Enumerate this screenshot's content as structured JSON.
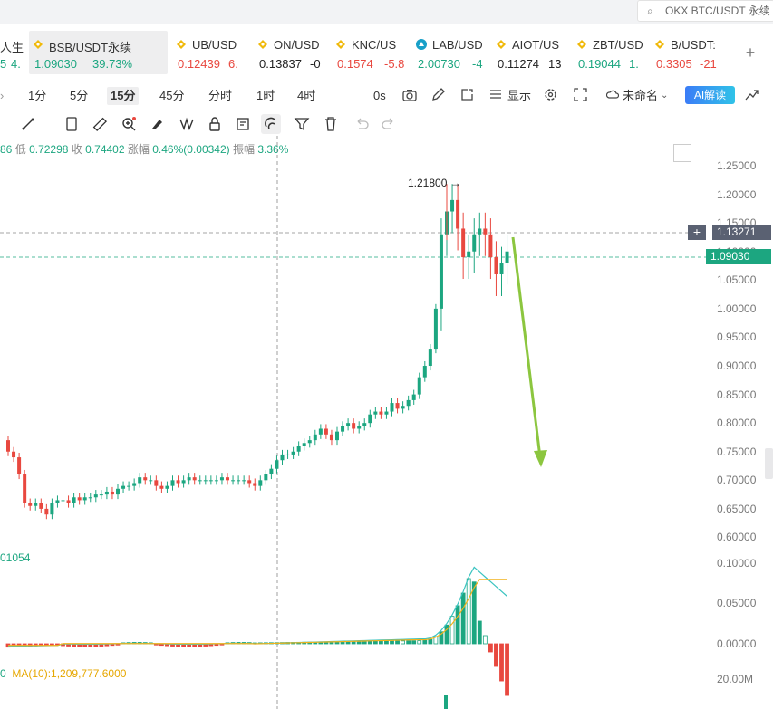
{
  "search": {
    "text": "OKX BTC/USDT 永续"
  },
  "tickers": [
    {
      "name": "人生",
      "price": "5",
      "change": "4.",
      "dir": "up",
      "icon": "none"
    },
    {
      "name": "BSB/USDT永续",
      "price": "1.09030",
      "change": "39.73%",
      "dir": "up",
      "icon": "binance-icon"
    },
    {
      "name": "UB/USD",
      "price": "0.12439",
      "change": "6.",
      "dir": "dn",
      "icon": "binance-icon"
    },
    {
      "name": "ON/USD",
      "price": "0.13837",
      "change": "-0",
      "dir": "neutral",
      "icon": "binance-icon"
    },
    {
      "name": "KNC/US",
      "price": "0.1574",
      "change": "-5.8",
      "dir": "dn",
      "icon": "binance-icon"
    },
    {
      "name": "LAB/USD",
      "price": "2.00730",
      "change": "-4",
      "dir": "up",
      "icon": "lab-icon"
    },
    {
      "name": "AIOT/US",
      "price": "0.11274",
      "change": "13",
      "dir": "neutral",
      "icon": "binance-icon"
    },
    {
      "name": "ZBT/USD",
      "price": "0.19044",
      "change": "1.",
      "dir": "up",
      "icon": "binance-icon"
    },
    {
      "name": "B/USDT:",
      "price": "0.3305",
      "change": "-21",
      "dir": "dn",
      "icon": "binance-icon"
    }
  ],
  "add_tab": "+",
  "toolbar": {
    "intervals": [
      "1分",
      "5分",
      "15分",
      "45分",
      "分时",
      "1时",
      "4时"
    ],
    "selected_interval": "15分",
    "countdown": "0s",
    "display_label": "显示",
    "layout_name": "未命名",
    "ai_button": "AI解读"
  },
  "info_line": {
    "open_tail": "86",
    "low_label": "低",
    "low": "0.72298",
    "close_label": "收",
    "close": "0.74402",
    "change_label": "涨幅",
    "change": "0.46%(0.00342)",
    "amp_label": "振幅",
    "amp": "3.36%"
  },
  "price_axis": [
    "1.25000",
    "1.20000",
    "1.15000",
    "1.10000",
    "1.05000",
    "1.00000",
    "0.95000",
    "0.90000",
    "0.85000",
    "0.80000",
    "0.75000",
    "0.70000",
    "0.65000",
    "0.60000"
  ],
  "crosshair_price": "1.13271",
  "current_price": "1.09030",
  "high_marker": "1.21800",
  "indicator_axis": [
    "0.10000",
    "0.05000",
    "0.00000"
  ],
  "volume_axis": "20.00M",
  "indicator_label_top": "01054",
  "indicator_label_bottom_prefix": "0",
  "indicator_label_bottom": "MA(10):1,209,777.6000",
  "colors": {
    "up": "#1ca680",
    "down": "#e8483f",
    "arrow": "#8cc63f",
    "ma": "#f2b21b",
    "macd": "#39c3c0"
  },
  "chart_data": {
    "type": "candlestick",
    "candles_close_approx": [
      0.75,
      0.74,
      0.71,
      0.66,
      0.655,
      0.66,
      0.65,
      0.64,
      0.66,
      0.665,
      0.665,
      0.66,
      0.67,
      0.665,
      0.67,
      0.67,
      0.675,
      0.675,
      0.68,
      0.675,
      0.685,
      0.69,
      0.69,
      0.695,
      0.705,
      0.7,
      0.7,
      0.69,
      0.685,
      0.69,
      0.7,
      0.695,
      0.7,
      0.705,
      0.7,
      0.7,
      0.7,
      0.7,
      0.7,
      0.705,
      0.7,
      0.7,
      0.7,
      0.7,
      0.695,
      0.69,
      0.7,
      0.71,
      0.72,
      0.735,
      0.745,
      0.745,
      0.75,
      0.76,
      0.765,
      0.77,
      0.78,
      0.79,
      0.78,
      0.77,
      0.785,
      0.795,
      0.8,
      0.79,
      0.795,
      0.8,
      0.815,
      0.82,
      0.815,
      0.82,
      0.835,
      0.825,
      0.83,
      0.84,
      0.85,
      0.88,
      0.9,
      0.93,
      1.0,
      1.13,
      1.17,
      1.19,
      1.14,
      1.09,
      1.1,
      1.13,
      1.14,
      1.13,
      1.09,
      1.06,
      1.08,
      1.1
    ]
  }
}
